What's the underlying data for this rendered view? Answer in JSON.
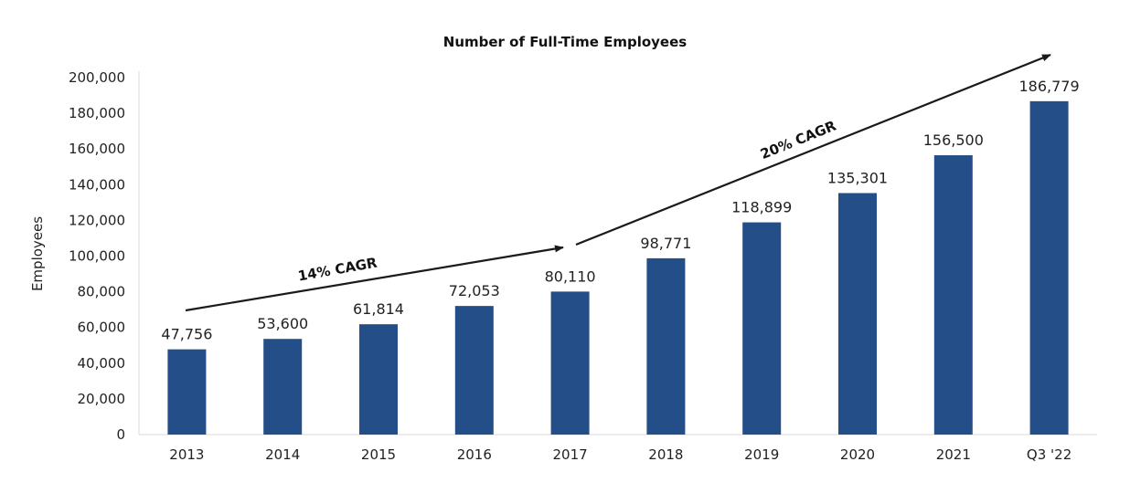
{
  "chart_data": {
    "type": "bar",
    "title": "Number of Full-Time Employees",
    "xlabel": "",
    "ylabel": "Employees",
    "categories": [
      "2013",
      "2014",
      "2015",
      "2016",
      "2017",
      "2018",
      "2019",
      "2020",
      "2021",
      "Q3 '22"
    ],
    "values": [
      47756,
      53600,
      61814,
      72053,
      80110,
      98771,
      118899,
      135301,
      156500,
      186779
    ],
    "data_labels": [
      "47,756",
      "53,600",
      "61,814",
      "72,053",
      "80,110",
      "98,771",
      "118,899",
      "135,301",
      "156,500",
      "186,779"
    ],
    "ylim": [
      0,
      200000
    ],
    "yticks": [
      0,
      20000,
      40000,
      60000,
      80000,
      100000,
      120000,
      140000,
      160000,
      180000,
      200000
    ],
    "ytick_labels": [
      "0",
      "20,000",
      "40,000",
      "60,000",
      "80,000",
      "100,000",
      "120,000",
      "140,000",
      "160,000",
      "180,000",
      "200,000"
    ],
    "bar_color": "#234e87",
    "grid": false,
    "legend": "none",
    "annotations": [
      {
        "text": "14% CAGR",
        "from_category": "2013",
        "to_category": "2017"
      },
      {
        "text": "20% CAGR",
        "from_category": "2017",
        "to_category": "Q3 '22"
      }
    ]
  }
}
